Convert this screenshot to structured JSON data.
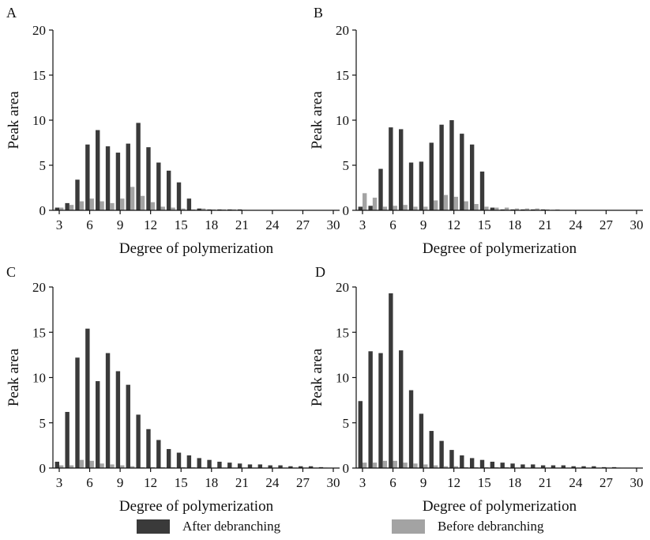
{
  "colors": {
    "after": "#3a3a3a",
    "before": "#a3a3a3",
    "axis": "#111111"
  },
  "legend": {
    "after_label": "After debranching",
    "before_label": "Before debranching"
  },
  "chart_data": [
    {
      "panel": "A",
      "type": "bar",
      "xlabel": "Degree of polymerization",
      "ylabel": "Peak area",
      "x": [
        3,
        4,
        5,
        6,
        7,
        8,
        9,
        10,
        11,
        12,
        13,
        14,
        15,
        16,
        17,
        18,
        19,
        20,
        21
      ],
      "xticks": [
        3,
        6,
        9,
        12,
        15,
        18,
        21,
        24,
        27,
        30
      ],
      "xlim": [
        3,
        30
      ],
      "yticks": [
        0,
        5,
        10,
        15,
        20
      ],
      "ylim": [
        0,
        20
      ],
      "series": [
        {
          "name": "After debranching",
          "values": [
            0.3,
            0.8,
            3.4,
            7.3,
            8.9,
            7.1,
            6.4,
            7.4,
            9.7,
            7.0,
            5.3,
            4.4,
            3.1,
            1.3,
            0.2,
            0.1,
            0.1,
            0.1,
            0.1
          ]
        },
        {
          "name": "Before debranching",
          "values": [
            0.3,
            0.6,
            1.0,
            1.3,
            1.0,
            0.8,
            1.3,
            2.6,
            1.6,
            0.9,
            0.4,
            0.3,
            0.2,
            0.1,
            0.2,
            0.1,
            0.1,
            0.1,
            0.05
          ]
        }
      ]
    },
    {
      "panel": "B",
      "type": "bar",
      "xlabel": "Degree of polymerization",
      "ylabel": "Peak area",
      "x": [
        3,
        4,
        5,
        6,
        7,
        8,
        9,
        10,
        11,
        12,
        13,
        14,
        15,
        16,
        17,
        18,
        19,
        20,
        21,
        22
      ],
      "xticks": [
        3,
        6,
        9,
        12,
        15,
        18,
        21,
        24,
        27,
        30
      ],
      "xlim": [
        3,
        30
      ],
      "yticks": [
        0,
        5,
        10,
        15,
        20
      ],
      "ylim": [
        0,
        20
      ],
      "series": [
        {
          "name": "After debranching",
          "values": [
            0.4,
            0.5,
            4.6,
            9.2,
            9.0,
            5.3,
            5.4,
            7.5,
            9.5,
            10.0,
            8.5,
            7.3,
            4.3,
            0.3,
            0.1,
            0.1,
            0.1,
            0.1,
            0.1,
            0.05
          ]
        },
        {
          "name": "Before debranching",
          "values": [
            1.9,
            1.4,
            0.4,
            0.5,
            0.6,
            0.4,
            0.4,
            1.1,
            1.7,
            1.5,
            1.0,
            0.7,
            0.4,
            0.3,
            0.3,
            0.2,
            0.2,
            0.2,
            0.1,
            0.1
          ]
        }
      ]
    },
    {
      "panel": "C",
      "type": "bar",
      "xlabel": "Degree of polymerization",
      "ylabel": "Peak area",
      "x": [
        3,
        4,
        5,
        6,
        7,
        8,
        9,
        10,
        11,
        12,
        13,
        14,
        15,
        16,
        17,
        18,
        19,
        20,
        21,
        22,
        23,
        24,
        25,
        26,
        27,
        28,
        29
      ],
      "xticks": [
        3,
        6,
        9,
        12,
        15,
        18,
        21,
        24,
        27,
        30
      ],
      "xlim": [
        3,
        30
      ],
      "yticks": [
        0,
        5,
        10,
        15,
        20
      ],
      "ylim": [
        0,
        20
      ],
      "series": [
        {
          "name": "After debranching",
          "values": [
            0.7,
            6.2,
            12.2,
            15.4,
            9.6,
            12.7,
            10.7,
            9.2,
            5.9,
            4.3,
            3.1,
            2.1,
            1.7,
            1.4,
            1.1,
            0.9,
            0.7,
            0.6,
            0.5,
            0.4,
            0.4,
            0.3,
            0.3,
            0.2,
            0.2,
            0.2,
            0.1
          ]
        },
        {
          "name": "Before debranching",
          "values": [
            0.3,
            0.3,
            0.9,
            0.8,
            0.5,
            0.4,
            0.3,
            0.2,
            0.1,
            0.1,
            0.1,
            0.1,
            0.1,
            0.1,
            0.1,
            0.05,
            0.05,
            0.05,
            0.05,
            0.05,
            0.05,
            0.05,
            0.05,
            0.05,
            0.05,
            0.05,
            0.05
          ]
        }
      ]
    },
    {
      "panel": "D",
      "type": "bar",
      "xlabel": "Degree of polymerization",
      "ylabel": "Peak area",
      "x": [
        3,
        4,
        5,
        6,
        7,
        8,
        9,
        10,
        11,
        12,
        13,
        14,
        15,
        16,
        17,
        18,
        19,
        20,
        21,
        22,
        23,
        24,
        25,
        26,
        27,
        28
      ],
      "xticks": [
        3,
        6,
        9,
        12,
        15,
        18,
        21,
        24,
        27,
        30
      ],
      "xlim": [
        3,
        30
      ],
      "yticks": [
        0,
        5,
        10,
        15,
        20
      ],
      "ylim": [
        0,
        20
      ],
      "series": [
        {
          "name": "After debranching",
          "values": [
            7.4,
            12.9,
            12.7,
            19.3,
            13.0,
            8.6,
            6.0,
            4.1,
            3.0,
            2.0,
            1.4,
            1.1,
            0.9,
            0.7,
            0.6,
            0.5,
            0.4,
            0.4,
            0.3,
            0.3,
            0.3,
            0.2,
            0.2,
            0.2,
            0.1,
            0.1
          ]
        },
        {
          "name": "Before debranching",
          "values": [
            0.6,
            0.6,
            0.8,
            0.8,
            0.6,
            0.5,
            0.4,
            0.3,
            0.2,
            0.2,
            0.1,
            0.1,
            0.1,
            0.1,
            0.1,
            0.05,
            0.05,
            0.05,
            0.05,
            0.05,
            0.05,
            0.05,
            0.05,
            0.05,
            0.05,
            0.05
          ]
        }
      ]
    }
  ]
}
